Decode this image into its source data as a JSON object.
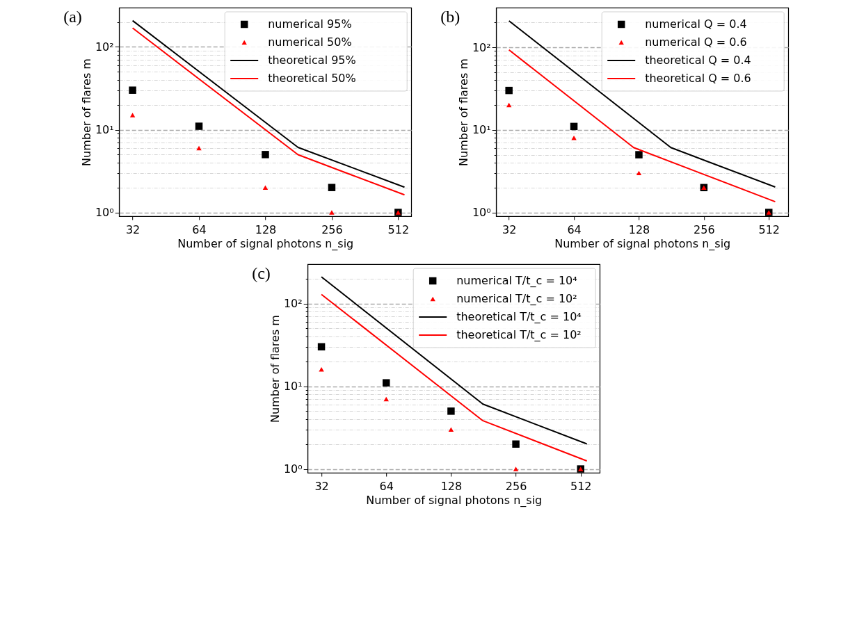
{
  "chart_data": [
    {
      "type": "line",
      "title": "(a)",
      "xlabel": "Number of signal photons n_sig",
      "ylabel": "Number of flares m",
      "log": "xy",
      "grid": "y",
      "legend": "top right",
      "xlim": [
        27.8,
        587
      ],
      "ylim": [
        0.9,
        298
      ],
      "xticks": [
        32,
        64,
        128,
        256,
        512
      ],
      "yticks": [
        {
          "value": 1,
          "label": "10⁰"
        },
        {
          "value": 2,
          "label": null
        },
        {
          "value": 3,
          "label": null
        },
        {
          "value": 4,
          "label": null
        },
        {
          "value": 5,
          "label": null
        },
        {
          "value": 6,
          "label": null
        },
        {
          "value": 7,
          "label": null
        },
        {
          "value": 8,
          "label": null
        },
        {
          "value": 9,
          "label": null
        },
        {
          "value": 10,
          "label": "10¹"
        },
        {
          "value": 20,
          "label": null
        },
        {
          "value": 30,
          "label": null
        },
        {
          "value": 40,
          "label": null
        },
        {
          "value": 50,
          "label": null
        },
        {
          "value": 60,
          "label": null
        },
        {
          "value": 70,
          "label": null
        },
        {
          "value": 80,
          "label": null
        },
        {
          "value": 90,
          "label": null
        },
        {
          "value": 100,
          "label": "10²"
        },
        {
          "value": 200,
          "label": null
        }
      ],
      "series": [
        {
          "name": "numerical 95%",
          "type": "scatter",
          "marker": "square",
          "color": "#000000",
          "x": [
            32,
            64,
            128,
            256,
            512
          ],
          "values": [
            30,
            11,
            5,
            2,
            1
          ]
        },
        {
          "name": "numerical 50%",
          "type": "scatter",
          "marker": "triangle",
          "color": "#ff0000",
          "x": [
            32,
            64,
            128,
            256,
            512
          ],
          "values": [
            15,
            6,
            2,
            1,
            1
          ]
        },
        {
          "name": "theoretical 95%",
          "line_style": "solid",
          "color": "#000000",
          "x": [
            32,
            180,
            547
          ],
          "values": [
            208,
            6.1,
            2.02
          ]
        },
        {
          "name": "theoretical 50%",
          "line_style": "solid",
          "color": "#ff0000",
          "x": [
            32,
            180,
            547
          ],
          "values": [
            169,
            4.98,
            1.63
          ]
        }
      ]
    },
    {
      "type": "line",
      "title": "(b)",
      "xlabel": "Number of signal photons n_sig",
      "ylabel": "Number of flares m",
      "log": "xy",
      "grid": "y",
      "legend": "top right",
      "xlim": [
        27.9,
        630
      ],
      "ylim": [
        0.9,
        302
      ],
      "xticks": [
        32,
        64,
        128,
        256,
        512
      ],
      "yticks": [
        {
          "value": 1,
          "label": "10⁰"
        },
        {
          "value": 2,
          "label": null
        },
        {
          "value": 3,
          "label": null
        },
        {
          "value": 4,
          "label": null
        },
        {
          "value": 5,
          "label": null
        },
        {
          "value": 6,
          "label": null
        },
        {
          "value": 7,
          "label": null
        },
        {
          "value": 8,
          "label": null
        },
        {
          "value": 9,
          "label": null
        },
        {
          "value": 10,
          "label": "10¹"
        },
        {
          "value": 20,
          "label": null
        },
        {
          "value": 30,
          "label": null
        },
        {
          "value": 40,
          "label": null
        },
        {
          "value": 50,
          "label": null
        },
        {
          "value": 60,
          "label": null
        },
        {
          "value": 70,
          "label": null
        },
        {
          "value": 80,
          "label": null
        },
        {
          "value": 90,
          "label": null
        },
        {
          "value": 100,
          "label": "10²"
        },
        {
          "value": 200,
          "label": null
        }
      ],
      "series": [
        {
          "name": "numerical Q = 0.4",
          "type": "scatter",
          "marker": "square",
          "color": "#000000",
          "x": [
            32,
            64,
            128,
            256,
            512
          ],
          "values": [
            30,
            11,
            5,
            2,
            1
          ]
        },
        {
          "name": "numerical Q = 0.6",
          "type": "scatter",
          "marker": "triangle",
          "color": "#ff0000",
          "x": [
            32,
            64,
            128,
            256,
            512
          ],
          "values": [
            20,
            8,
            3,
            2,
            1
          ]
        },
        {
          "name": "theoretical Q = 0.4",
          "line_style": "solid",
          "color": "#000000",
          "x": [
            32,
            180,
            548
          ],
          "values": [
            209,
            6.1,
            2.03
          ]
        },
        {
          "name": "theoretical Q = 0.6",
          "line_style": "solid",
          "color": "#ff0000",
          "x": [
            32,
            121,
            548
          ],
          "values": [
            93,
            6.1,
            1.35
          ]
        }
      ]
    },
    {
      "type": "line",
      "title": "(c)",
      "xlabel": "Number of signal photons n_sig",
      "ylabel": "Number of flares m",
      "log": "xy",
      "grid": "y",
      "legend": "top right",
      "xlim": [
        27.6,
        628
      ],
      "ylim": [
        0.9,
        299
      ],
      "xticks": [
        32,
        64,
        128,
        256,
        512
      ],
      "yticks": [
        {
          "value": 1,
          "label": "10⁰"
        },
        {
          "value": 2,
          "label": null
        },
        {
          "value": 3,
          "label": null
        },
        {
          "value": 4,
          "label": null
        },
        {
          "value": 5,
          "label": null
        },
        {
          "value": 6,
          "label": null
        },
        {
          "value": 7,
          "label": null
        },
        {
          "value": 8,
          "label": null
        },
        {
          "value": 9,
          "label": null
        },
        {
          "value": 10,
          "label": "10¹"
        },
        {
          "value": 20,
          "label": null
        },
        {
          "value": 30,
          "label": null
        },
        {
          "value": 40,
          "label": null
        },
        {
          "value": 50,
          "label": null
        },
        {
          "value": 60,
          "label": null
        },
        {
          "value": 70,
          "label": null
        },
        {
          "value": 80,
          "label": null
        },
        {
          "value": 90,
          "label": null
        },
        {
          "value": 100,
          "label": "10²"
        },
        {
          "value": 200,
          "label": null
        }
      ],
      "series": [
        {
          "name": "numerical T/t_c = 10⁴",
          "type": "scatter",
          "marker": "square",
          "color": "#000000",
          "x": [
            32,
            64,
            128,
            256,
            512
          ],
          "values": [
            30,
            11,
            5,
            2,
            1
          ]
        },
        {
          "name": "numerical T/t_c = 10²",
          "type": "scatter",
          "marker": "triangle",
          "color": "#ff0000",
          "x": [
            32,
            64,
            128,
            256,
            512
          ],
          "values": [
            16,
            7,
            3,
            1,
            1
          ]
        },
        {
          "name": "theoretical T/t_c = 10⁴",
          "line_style": "solid",
          "color": "#000000",
          "x": [
            32,
            180,
            547
          ],
          "values": [
            210,
            6.08,
            2.01
          ]
        },
        {
          "name": "theoretical T/t_c = 10²",
          "line_style": "solid",
          "color": "#ff0000",
          "x": [
            32,
            180,
            547
          ],
          "values": [
            129,
            3.83,
            1.25
          ]
        }
      ]
    }
  ]
}
